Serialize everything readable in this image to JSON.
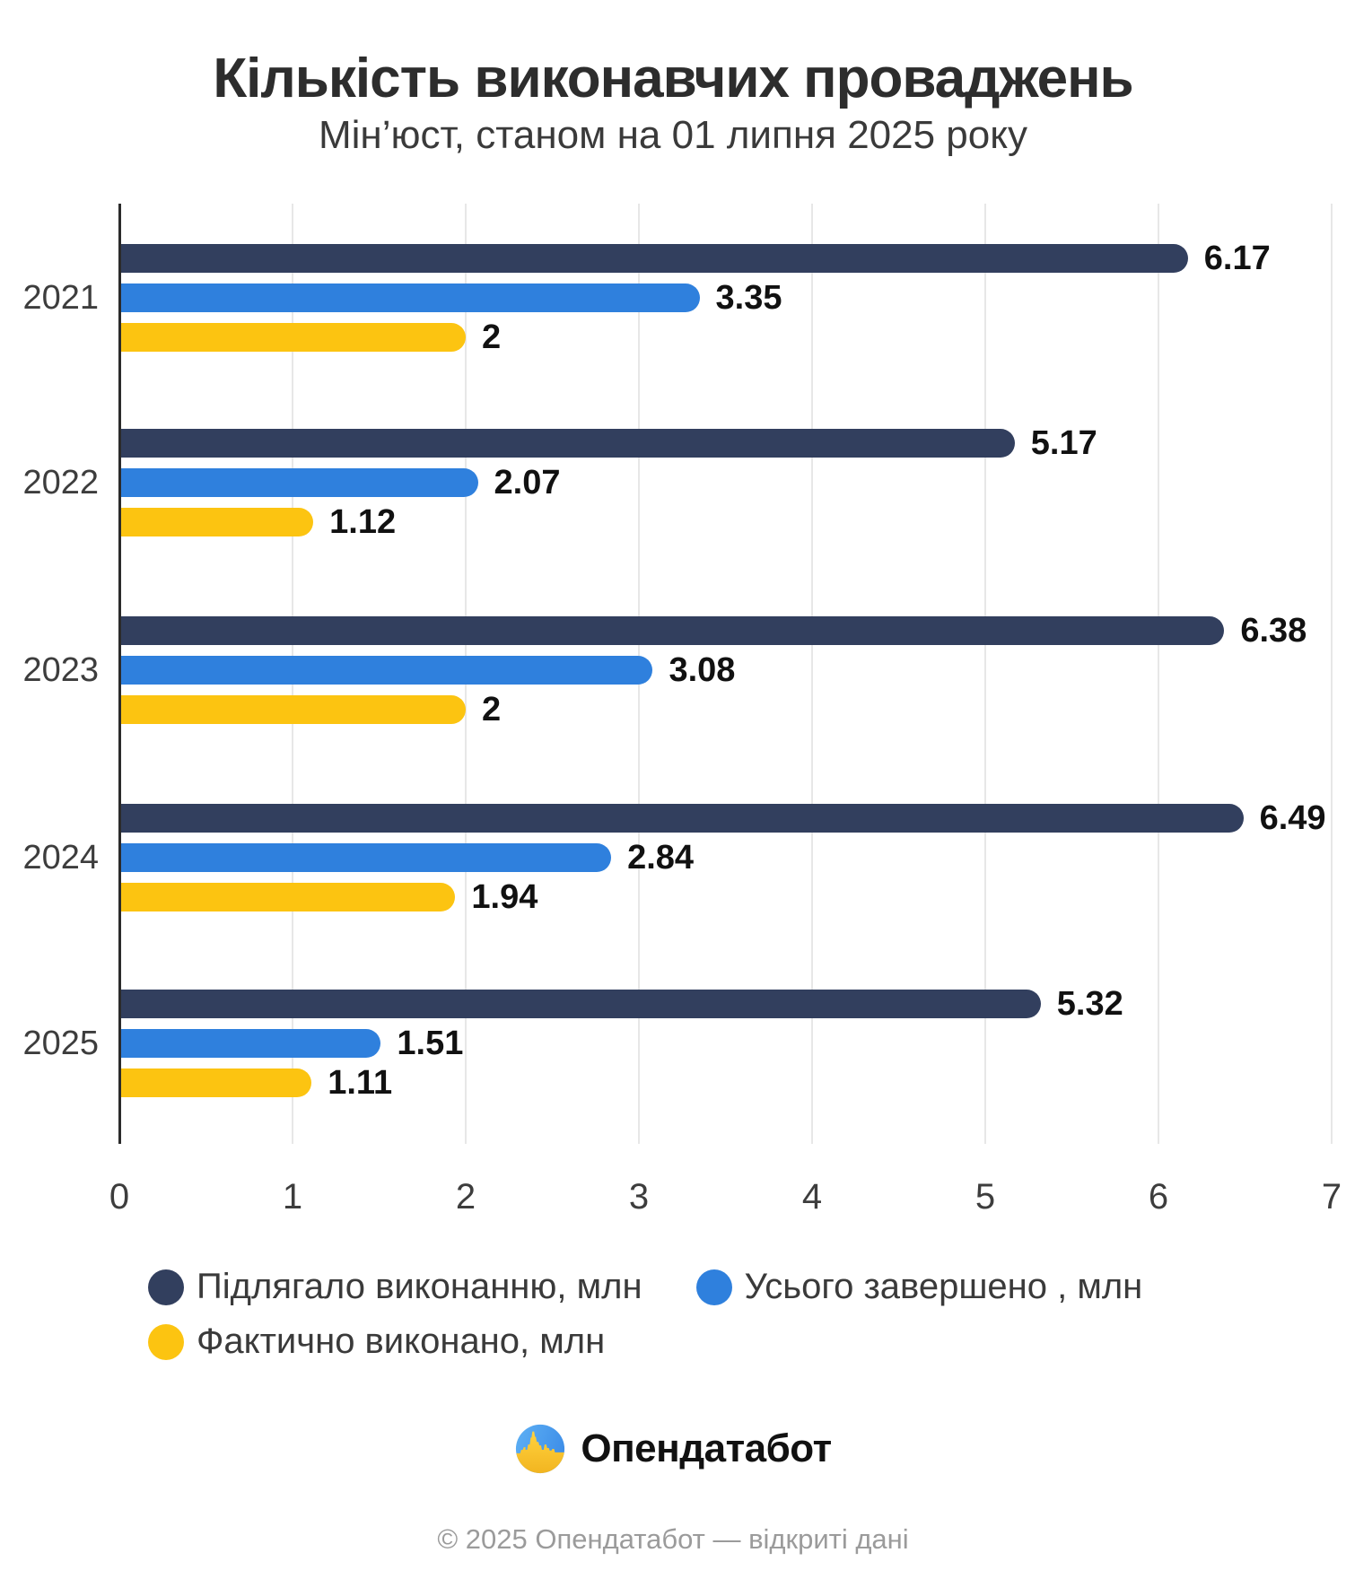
{
  "title": "Кількість виконавчих проваджень",
  "subtitle": "Мін’юст, станом на 01 липня 2025 року",
  "chart_data": {
    "type": "bar",
    "orientation": "horizontal",
    "title": "Кількість виконавчих проваджень",
    "subtitle": "Мін’юст, станом на 01 липня 2025 року",
    "categories": [
      "2021",
      "2022",
      "2023",
      "2024",
      "2025"
    ],
    "series": [
      {
        "name": "Підлягало виконанню, млн",
        "color": "#323F5E",
        "values": [
          6.17,
          5.17,
          6.38,
          6.49,
          5.32
        ],
        "labels": [
          "6.17",
          "5.17",
          "6.38",
          "6.49",
          "5.32"
        ]
      },
      {
        "name": "Усього завершено , млн",
        "color": "#2F80DD",
        "values": [
          3.35,
          2.07,
          3.08,
          2.84,
          1.51
        ],
        "labels": [
          "3.35",
          "2.07",
          "3.08",
          "2.84",
          "1.51"
        ]
      },
      {
        "name": "Фактично виконано, млн",
        "color": "#FCC411",
        "values": [
          2,
          1.12,
          2,
          1.94,
          1.11
        ],
        "labels": [
          "2",
          "1.12",
          "2",
          "1.94",
          "1.11"
        ]
      }
    ],
    "xlim": [
      0,
      7
    ],
    "xticks": [
      "0",
      "1",
      "2",
      "3",
      "4",
      "5",
      "6",
      "7"
    ],
    "grid": true,
    "legend_position": "bottom",
    "value_labels": true
  },
  "footer": {
    "brand": "Опендатабот",
    "copyright": "© 2025 Опендатабот — відкриті дані",
    "logo_colors": {
      "blue": "#4BA3F0",
      "yellow": "#FFD23E"
    }
  }
}
